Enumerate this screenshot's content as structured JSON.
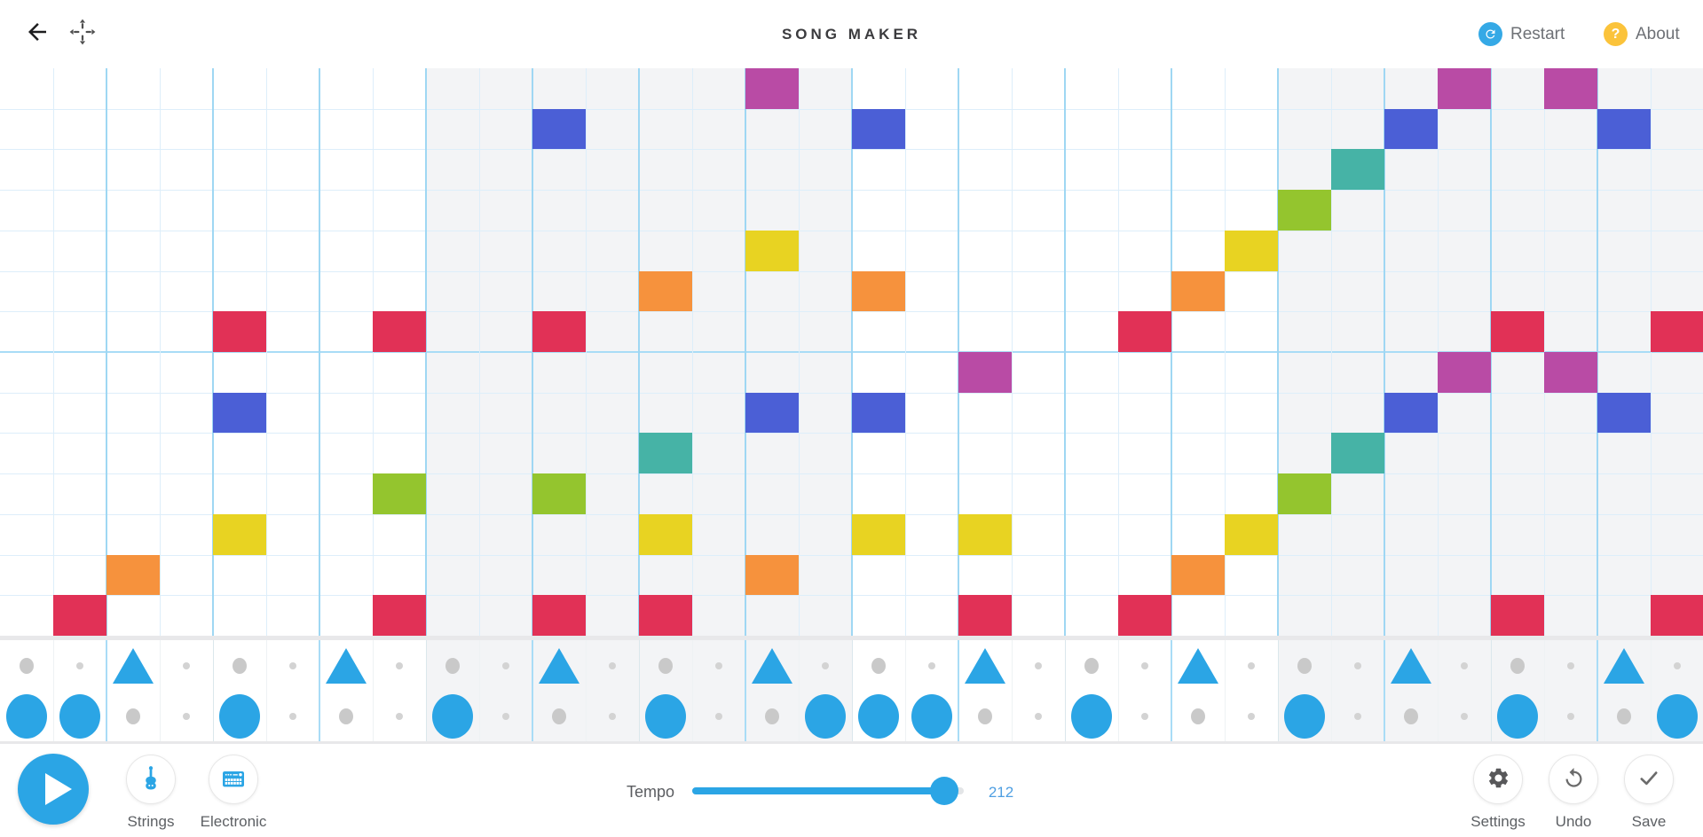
{
  "header": {
    "title": "SONG MAKER",
    "restart": {
      "label": "Restart"
    },
    "about": {
      "label": "About"
    }
  },
  "icons": {
    "top_left": [
      "back-arrow-icon",
      "move-pan-icon"
    ],
    "restart": "refresh-icon",
    "about": "question-icon",
    "play": "play-icon",
    "melodic_instrument": "violin-icon",
    "percussion_instrument": "drum-machine-icon",
    "settings": "gear-icon",
    "undo": "undo-rotate-icon",
    "save": "checkmark-icon"
  },
  "footer": {
    "instruments": {
      "melodic": "Strings",
      "percussion": "Electronic"
    },
    "tempo": {
      "label": "Tempo",
      "value": "212"
    },
    "actions": {
      "settings": "Settings",
      "undo": "Undo",
      "save": "Save"
    }
  },
  "colors": {
    "note_red": "#e13156",
    "note_orange": "#f6923d",
    "note_yellow": "#e8d322",
    "note_green": "#94c52e",
    "note_teal": "#46b3a6",
    "note_blue": "#4b5fd6",
    "note_purple": "#b94ba5",
    "accent_blue": "#2ba5e5",
    "about_amber": "#fbc33b",
    "bar_shade": "#f3f4f6",
    "line_light": "#ddeefa",
    "line_medium": "#9fd7f3",
    "octave_line": "#a9dcf6"
  },
  "grid": {
    "columns": 32,
    "rows": 14,
    "bars": 4,
    "row_pitch_colors": [
      "purple",
      "blue",
      "teal",
      "green",
      "yellow",
      "orange",
      "red",
      "purple",
      "blue",
      "teal",
      "green",
      "yellow",
      "orange",
      "red"
    ],
    "notes": [
      {
        "c": 2,
        "r": 14,
        "color": "red"
      },
      {
        "c": 3,
        "r": 13,
        "color": "orange"
      },
      {
        "c": 5,
        "r": 7,
        "color": "red"
      },
      {
        "c": 5,
        "r": 9,
        "color": "blue"
      },
      {
        "c": 5,
        "r": 12,
        "color": "yellow"
      },
      {
        "c": 8,
        "r": 7,
        "color": "red"
      },
      {
        "c": 8,
        "r": 11,
        "color": "green"
      },
      {
        "c": 8,
        "r": 14,
        "color": "red"
      },
      {
        "c": 11,
        "r": 2,
        "color": "blue"
      },
      {
        "c": 11,
        "r": 7,
        "color": "red"
      },
      {
        "c": 11,
        "r": 11,
        "color": "green"
      },
      {
        "c": 11,
        "r": 14,
        "color": "red"
      },
      {
        "c": 13,
        "r": 6,
        "color": "orange"
      },
      {
        "c": 13,
        "r": 10,
        "color": "teal"
      },
      {
        "c": 13,
        "r": 12,
        "color": "yellow"
      },
      {
        "c": 13,
        "r": 14,
        "color": "red"
      },
      {
        "c": 15,
        "r": 1,
        "color": "purple"
      },
      {
        "c": 15,
        "r": 5,
        "color": "yellow"
      },
      {
        "c": 15,
        "r": 9,
        "color": "blue"
      },
      {
        "c": 15,
        "r": 13,
        "color": "orange"
      },
      {
        "c": 17,
        "r": 2,
        "color": "blue"
      },
      {
        "c": 17,
        "r": 6,
        "color": "orange"
      },
      {
        "c": 17,
        "r": 9,
        "color": "blue"
      },
      {
        "c": 17,
        "r": 12,
        "color": "yellow"
      },
      {
        "c": 19,
        "r": 8,
        "color": "purple"
      },
      {
        "c": 19,
        "r": 12,
        "color": "yellow"
      },
      {
        "c": 19,
        "r": 14,
        "color": "red"
      },
      {
        "c": 22,
        "r": 7,
        "color": "red"
      },
      {
        "c": 22,
        "r": 14,
        "color": "red"
      },
      {
        "c": 23,
        "r": 6,
        "color": "orange"
      },
      {
        "c": 23,
        "r": 13,
        "color": "orange"
      },
      {
        "c": 24,
        "r": 5,
        "color": "yellow"
      },
      {
        "c": 24,
        "r": 12,
        "color": "yellow"
      },
      {
        "c": 25,
        "r": 4,
        "color": "green"
      },
      {
        "c": 25,
        "r": 11,
        "color": "green"
      },
      {
        "c": 26,
        "r": 3,
        "color": "teal"
      },
      {
        "c": 26,
        "r": 10,
        "color": "teal"
      },
      {
        "c": 27,
        "r": 2,
        "color": "blue"
      },
      {
        "c": 27,
        "r": 9,
        "color": "blue"
      },
      {
        "c": 28,
        "r": 1,
        "color": "purple"
      },
      {
        "c": 28,
        "r": 8,
        "color": "purple"
      },
      {
        "c": 29,
        "r": 7,
        "color": "red"
      },
      {
        "c": 29,
        "r": 14,
        "color": "red"
      },
      {
        "c": 30,
        "r": 1,
        "color": "purple"
      },
      {
        "c": 30,
        "r": 8,
        "color": "purple"
      },
      {
        "c": 31,
        "r": 2,
        "color": "blue"
      },
      {
        "c": 31,
        "r": 9,
        "color": "blue"
      },
      {
        "c": 32,
        "r": 7,
        "color": "red"
      },
      {
        "c": 32,
        "r": 14,
        "color": "red"
      }
    ]
  },
  "percussion": {
    "rows": 2,
    "triangle_columns": [
      3,
      7,
      11,
      15,
      19,
      23,
      27,
      31
    ],
    "circle_columns": [
      1,
      2,
      5,
      9,
      13,
      16,
      17,
      18,
      21,
      25,
      29,
      32
    ]
  }
}
